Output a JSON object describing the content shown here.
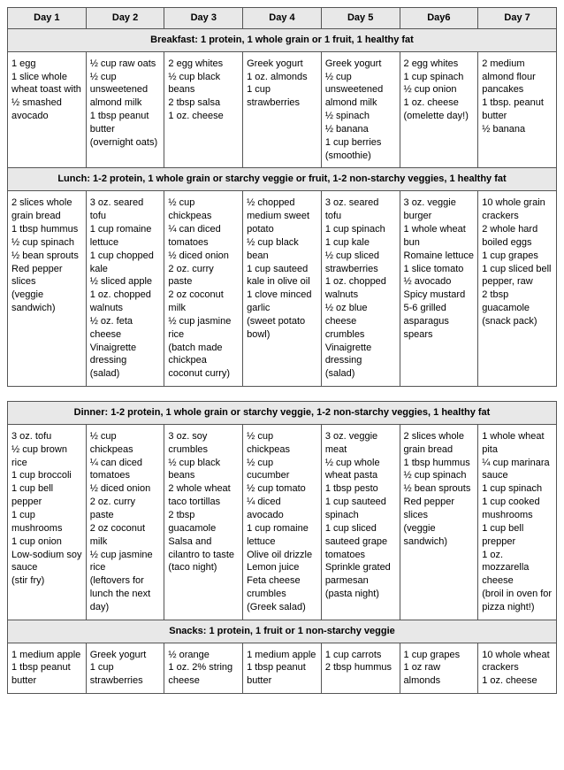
{
  "colors": {
    "header_bg": "#e8e8e8",
    "border": "#555555",
    "cell_bg": "#ffffff",
    "text": "#000000"
  },
  "day_headers": [
    "Day 1",
    "Day 2",
    "Day 3",
    "Day 4",
    "Day 5",
    "Day6",
    "Day 7"
  ],
  "sections": {
    "breakfast": {
      "title": "Breakfast: 1 protein, 1 whole grain or 1 fruit, 1 healthy fat",
      "rows": [
        [
          "1 egg",
          "1 slice whole wheat toast with ½ smashed avocado"
        ],
        [
          "½ cup raw oats",
          "½ cup unsweetened almond milk",
          "1 tbsp peanut butter",
          "(overnight oats)"
        ],
        [
          "2 egg whites",
          "½ cup black beans",
          "2 tbsp salsa",
          "1 oz. cheese"
        ],
        [
          "Greek yogurt",
          "1 oz. almonds",
          "1 cup strawberries"
        ],
        [
          "Greek yogurt",
          "½ cup unsweetened almond milk",
          "½ spinach",
          "½ banana",
          "1 cup berries",
          "(smoothie)"
        ],
        [
          "2 egg whites",
          "1 cup spinach",
          "½ cup onion",
          "1 oz. cheese",
          "(omelette day!)"
        ],
        [
          "2 medium almond flour pancakes",
          "1 tbsp. peanut butter",
          "½ banana"
        ]
      ]
    },
    "lunch": {
      "title": "Lunch: 1-2 protein, 1 whole grain or starchy veggie or fruit, 1-2 non-starchy veggies, 1 healthy fat",
      "rows": [
        [
          "2 slices whole grain bread",
          "1 tbsp hummus",
          "½ cup spinach",
          "½ bean sprouts",
          "Red pepper slices",
          "(veggie sandwich)"
        ],
        [
          "3 oz. seared tofu",
          "1 cup romaine lettuce",
          "1 cup chopped kale",
          "½ sliced apple",
          "1 oz. chopped walnuts",
          "½ oz. feta cheese",
          "Vinaigrette dressing",
          "(salad)"
        ],
        [
          "½ cup chickpeas",
          "¼ can diced tomatoes",
          "½ diced onion",
          "2 oz. curry paste",
          "2 oz coconut milk",
          "½ cup jasmine rice",
          "(batch made chickpea coconut curry)"
        ],
        [
          "½ chopped medium sweet potato",
          "½ cup black bean",
          "1 cup sauteed kale in olive oil",
          "1 clove minced garlic",
          "(sweet potato bowl)"
        ],
        [
          "3 oz. seared tofu",
          "1 cup spinach",
          "1 cup kale",
          "½ cup sliced strawberries",
          "1 oz. chopped walnuts",
          "½ oz blue cheese crumbles",
          "Vinaigrette dressing",
          "(salad)"
        ],
        [
          "3 oz. veggie burger",
          "1 whole wheat bun",
          "Romaine lettuce",
          "1 slice tomato",
          "½ avocado",
          "Spicy mustard",
          "5-6 grilled asparagus spears"
        ],
        [
          "10 whole grain crackers",
          "2 whole hard boiled eggs",
          "1 cup grapes",
          "1 cup sliced bell pepper, raw",
          "2 tbsp guacamole",
          "(snack pack)"
        ]
      ]
    },
    "dinner": {
      "title": "Dinner: 1-2 protein, 1 whole grain or starchy veggie, 1-2 non-starchy veggies, 1 healthy fat",
      "rows": [
        [
          "3 oz. tofu",
          "½ cup brown rice",
          "1 cup broccoli",
          "1 cup bell pepper",
          "1 cup mushrooms",
          "1 cup onion",
          "Low-sodium soy sauce",
          "(stir fry)"
        ],
        [
          "½ cup chickpeas",
          "¼ can diced tomatoes",
          "½ diced onion",
          "2 oz. curry paste",
          "2 oz coconut milk",
          "½ cup jasmine rice",
          "(leftovers for lunch the next day)"
        ],
        [
          "3 oz. soy crumbles",
          "½ cup black beans",
          "2 whole wheat taco tortillas",
          "2 tbsp guacamole",
          "Salsa and cilantro to taste",
          "(taco night)"
        ],
        [
          "½ cup chickpeas",
          "½ cup cucumber",
          "½ cup tomato",
          "¼ diced avocado",
          "1 cup romaine lettuce",
          "Olive oil drizzle",
          "Lemon juice",
          "Feta cheese crumbles",
          "(Greek salad)"
        ],
        [
          "3 oz. veggie meat",
          "½ cup whole wheat pasta",
          "1 tbsp pesto",
          "1 cup sauteed spinach",
          "1 cup sliced sauteed grape tomatoes",
          "Sprinkle grated parmesan",
          "(pasta night)"
        ],
        [
          "2 slices whole grain bread",
          "1 tbsp hummus",
          "½ cup spinach",
          "½ bean sprouts",
          "Red pepper slices",
          "(veggie sandwich)"
        ],
        [
          "1 whole wheat pita",
          "¼ cup marinara sauce",
          "1 cup spinach",
          "1 cup cooked mushrooms",
          "1 cup bell prepper",
          "1 oz. mozzarella cheese",
          "(broil in oven for pizza night!)"
        ]
      ]
    },
    "snacks": {
      "title": "Snacks: 1 protein, 1 fruit or 1 non-starchy veggie",
      "rows": [
        [
          "1 medium apple",
          "1 tbsp peanut butter"
        ],
        [
          "Greek yogurt",
          "1 cup strawberries"
        ],
        [
          "½ orange",
          "1 oz. 2% string cheese"
        ],
        [
          "1 medium apple",
          "1 tbsp peanut butter"
        ],
        [
          "1 cup carrots",
          "2 tbsp hummus"
        ],
        [
          "1 cup grapes",
          "1 oz raw almonds"
        ],
        [
          "10 whole wheat crackers",
          "1 oz. cheese"
        ]
      ]
    }
  }
}
